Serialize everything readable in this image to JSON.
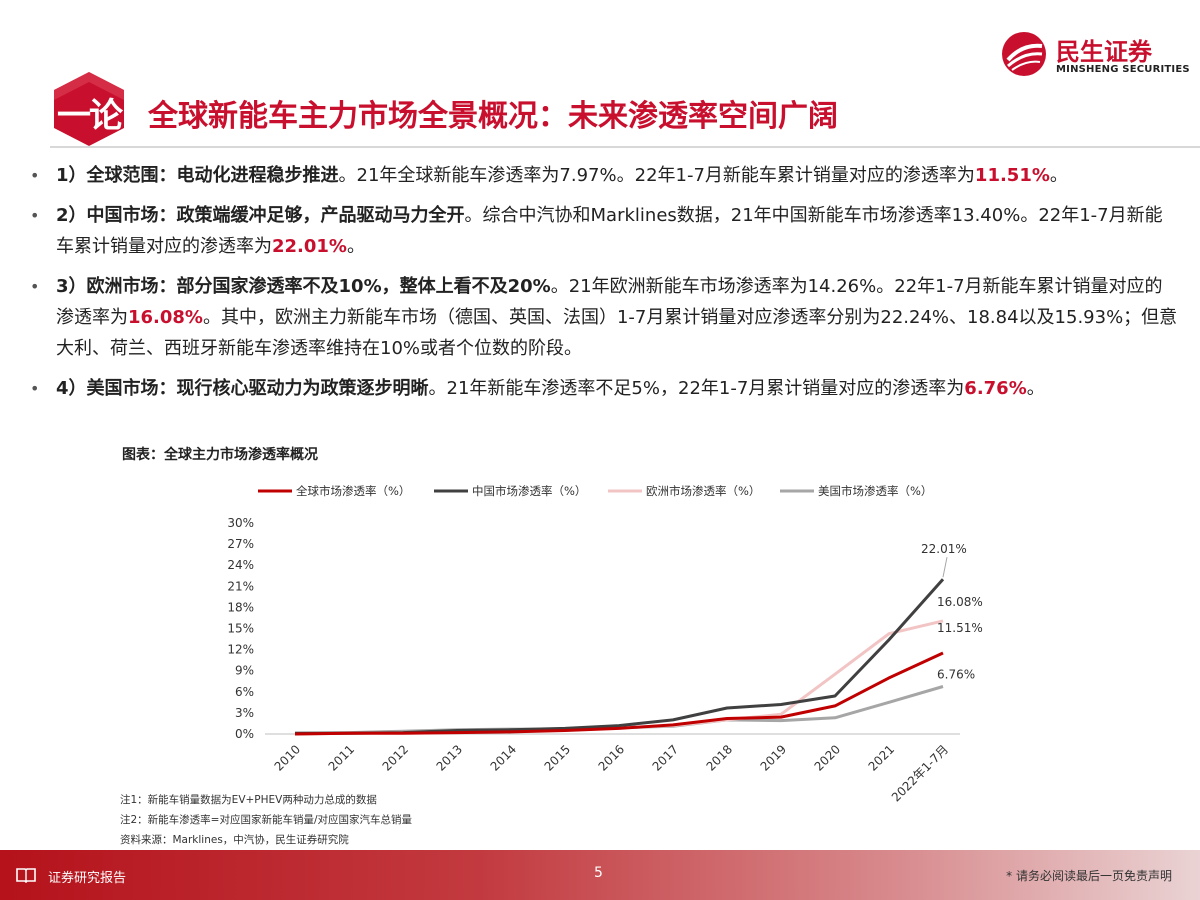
{
  "header": {
    "badge_text": "一论",
    "title": "全球新能车主力市场全景概况：未来渗透率空间广阔",
    "logo_cn": "民生证券",
    "logo_en": "MINSHENG SECURITIES"
  },
  "bullets": [
    {
      "lead": "1）全球范围：电动化进程稳步推进",
      "text": "。21年全球新能车渗透率为7.97%。22年1-7月新能车累计销量对应的渗透率为",
      "highlight": "11.51%",
      "tail": "。"
    },
    {
      "lead": "2）中国市场：政策端缓冲足够，产品驱动马力全开",
      "text": "。综合中汽协和Marklines数据，21年中国新能车市场渗透率13.40%。22年1-7月新能车累计销量对应的渗透率为",
      "highlight": "22.01%",
      "tail": "。"
    },
    {
      "lead": "3）欧洲市场：部分国家渗透率不及10%，整体上看不及20%",
      "text": "。21年欧洲新能车市场渗透率为14.26%。22年1-7月新能车累计销量对应的渗透率为",
      "highlight": "16.08%",
      "tail": "。其中，欧洲主力新能车市场（德国、英国、法国）1-7月累计销量对应渗透率分别为22.24%、18.84以及15.93%；但意大利、荷兰、西班牙新能车渗透率维持在10%或者个位数的阶段。"
    },
    {
      "lead": "4）美国市场：现行核心驱动力为政策逐步明晰",
      "text": "。21年新能车渗透率不足5%，22年1-7月累计销量对应的渗透率为",
      "highlight": "6.76%",
      "tail": "。"
    }
  ],
  "chart_title": "图表：全球主力市场渗透率概况",
  "chart_data": {
    "type": "line",
    "categories": [
      "2010",
      "2011",
      "2012",
      "2013",
      "2014",
      "2015",
      "2016",
      "2017",
      "2018",
      "2019",
      "2020",
      "2021",
      "2022年1-7月"
    ],
    "series": [
      {
        "name": "全球市场渗透率（%）",
        "color": "#c00000",
        "values": [
          0.0,
          0.1,
          0.1,
          0.2,
          0.3,
          0.5,
          0.8,
          1.3,
          2.2,
          2.4,
          4.0,
          7.97,
          11.51
        ]
      },
      {
        "name": "中国市场渗透率（%）",
        "color": "#404040",
        "values": [
          0.1,
          0.1,
          0.2,
          0.5,
          0.6,
          0.8,
          1.2,
          2.0,
          3.7,
          4.2,
          5.4,
          13.4,
          22.01
        ]
      },
      {
        "name": "欧洲市场渗透率（%）",
        "color": "#f2c4c4",
        "values": [
          0.0,
          0.1,
          0.2,
          0.3,
          0.4,
          0.6,
          0.9,
          1.2,
          2.0,
          2.8,
          8.5,
          14.26,
          16.08
        ]
      },
      {
        "name": "美国市场渗透率（%）",
        "color": "#a6a6a6",
        "values": [
          0.1,
          0.2,
          0.4,
          0.6,
          0.7,
          0.7,
          0.9,
          1.1,
          2.0,
          1.9,
          2.3,
          4.5,
          6.76
        ]
      }
    ],
    "data_labels": [
      "22.01%",
      "16.08%",
      "11.51%",
      "6.76%"
    ],
    "ylim": [
      0,
      30
    ],
    "yticks": [
      "0%",
      "3%",
      "6%",
      "9%",
      "12%",
      "15%",
      "18%",
      "21%",
      "24%",
      "27%",
      "30%"
    ],
    "legend_position": "top",
    "grid": false
  },
  "notes": [
    "注1：新能车销量数据为EV+PHEV两种动力总成的数据",
    "注2：新能车渗透率=对应国家新能车销量/对应国家汽车总销量",
    "资料来源：Marklines，中汽协，民生证券研究院"
  ],
  "footer": {
    "label": "证券研究报告",
    "page": "5",
    "disclaimer": "* 请务必阅读最后一页免责声明"
  },
  "colors": {
    "brand": "#c8102e"
  }
}
